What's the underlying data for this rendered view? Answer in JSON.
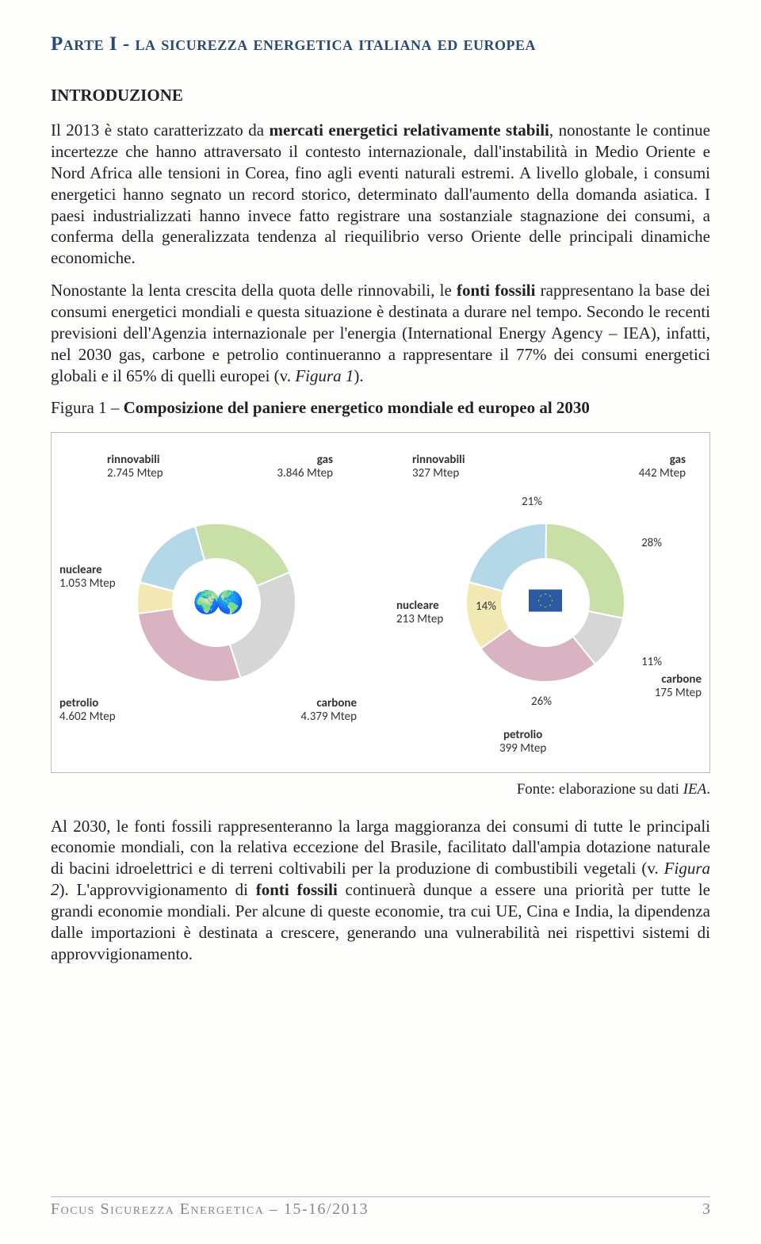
{
  "part_title": "Parte I - la sicurezza energetica italiana ed europea",
  "intro_heading": "INTRODUZIONE",
  "para1_a": "Il 2013 è stato caratterizzato da ",
  "para1_b": "mercati energetici relativamente stabili",
  "para1_c": ", nonostante le continue incertezze che hanno attraversato il contesto internazionale, dall'instabilità in Medio Oriente e Nord Africa alle tensioni in Corea, fino agli eventi naturali estremi. A livello globale, i consumi energetici hanno segnato un record storico, determinato dall'aumento della domanda asiatica. I paesi industrializzati hanno invece fatto registrare una sostanziale stagnazione dei consumi, a conferma della generalizzata tendenza al riequilibrio verso Oriente delle principali dinamiche economiche.",
  "para2_a": "Nonostante la lenta crescita della quota delle rinnovabili, le ",
  "para2_b": "fonti fossili",
  "para2_c": " rappresentano la base dei consumi energetici mondiali e questa situazione è destinata a durare nel tempo. Secondo le recenti previsioni dell'Agenzia internazionale per l'energia (International Energy Agency – IEA), infatti, nel 2030 gas, carbone e petrolio continueranno a rappresentare il 77% dei consumi energetici globali e il 65% di quelli europei (v. ",
  "para2_d": "Figura 1",
  "para2_e": ").",
  "fig1_label": "Figura 1 – ",
  "fig1_title": "Composizione del paniere energetico mondiale ed europeo al 2030",
  "source_a": "Fonte: elaborazione su dati ",
  "source_b": "IEA",
  "source_c": ".",
  "para3_a": "Al 2030, le fonti fossili rappresenteranno la larga maggioranza dei consumi di tutte le principali economie mondiali, con la relativa eccezione del Brasile, facilitato dall'ampia dotazione naturale di bacini idroelettrici e di terreni coltivabili per la produzione di combustibili vegetali (v. ",
  "para3_b": "Figura 2",
  "para3_c": "). L'approvvigionamento di ",
  "para3_d": "fonti fossili",
  "para3_e": " continuerà dunque a essere una priorità per tutte le grandi economie mondiali. Per alcune di queste economie, tra cui UE, Cina e India, la dipendenza dalle importazioni è destinata a crescere, generando una vulnerabilità nei rispettivi sistemi di approvvigionamento.",
  "footer_text": "Focus Sicurezza Energetica",
  "footer_sep": " – ",
  "footer_issue": "15-16/2013",
  "page_number": "3",
  "chart": {
    "type": "donut-pair",
    "background_color": "#ffffff",
    "border_color": "#bfbfbf",
    "world": {
      "segments": [
        {
          "key": "petrolio",
          "label": "petrolio",
          "value": "4.602 Mtep",
          "share": 27.7,
          "color": "#d9b3c2"
        },
        {
          "key": "carbone",
          "label": "carbone",
          "value": "4.379 Mtep",
          "share": 26.3,
          "color": "#d6d6d6"
        },
        {
          "key": "gas",
          "label": "gas",
          "value": "3.846 Mtep",
          "share": 23.1,
          "color": "#c8e0a8"
        },
        {
          "key": "rinnovabili",
          "label": "rinnovabili",
          "value": "2.745 Mtep",
          "share": 16.5,
          "color": "#b4d8e8"
        },
        {
          "key": "nucleare",
          "label": "nucleare",
          "value": "1.053 Mtep",
          "share": 6.3,
          "color": "#f2e8b4"
        }
      ],
      "show_percent": false
    },
    "eu": {
      "segments": [
        {
          "key": "petrolio",
          "label": "petrolio",
          "value": "399 Mtep",
          "share": 26,
          "color": "#d9b3c2",
          "pct": "26%"
        },
        {
          "key": "carbone",
          "label": "carbone",
          "value": "175 Mtep",
          "share": 11,
          "color": "#d6d6d6",
          "pct": "11%"
        },
        {
          "key": "gas",
          "label": "gas",
          "value": "442 Mtep",
          "share": 28,
          "color": "#c8e0a8",
          "pct": "28%"
        },
        {
          "key": "rinnovabili",
          "label": "rinnovabili",
          "value": "327 Mtep",
          "share": 21,
          "color": "#b4d8e8",
          "pct": "21%"
        },
        {
          "key": "nucleare",
          "label": "nucleare",
          "value": "213 Mtep",
          "share": 14,
          "color": "#f2e8b4",
          "pct": "14%"
        }
      ],
      "show_percent": true
    },
    "donut_outer_r": 100,
    "donut_inner_r": 55,
    "stroke": "#ffffff",
    "stroke_width": 2
  }
}
